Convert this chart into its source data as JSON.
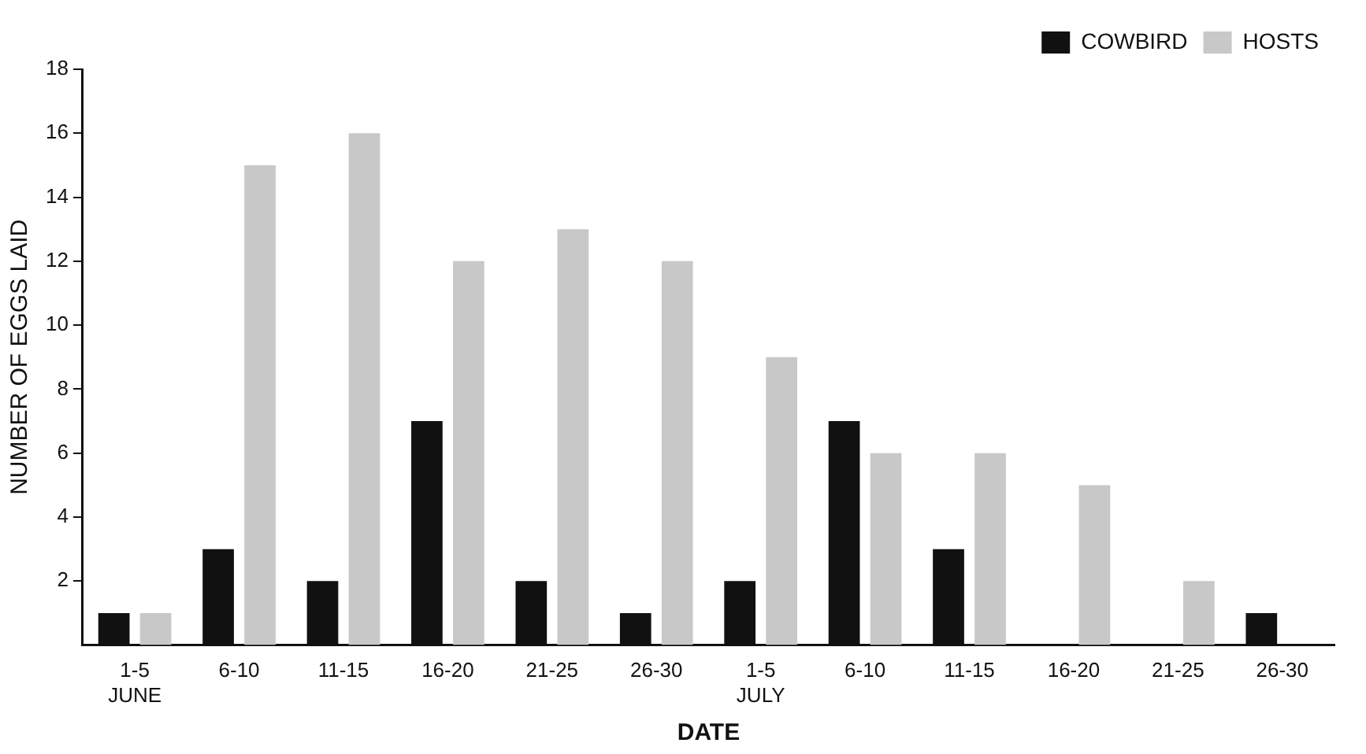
{
  "chart_data": {
    "type": "bar",
    "xlabel": "DATE",
    "ylabel": "NUMBER OF EGGS LAID",
    "categories": [
      "1-5\nJUNE",
      "6-10",
      "11-15",
      "16-20",
      "21-25",
      "26-30",
      "1-5\nJULY",
      "6-10",
      "11-15",
      "16-20",
      "21-25",
      "26-30"
    ],
    "series": [
      {
        "name": "COWBIRD",
        "color": "#111111",
        "values": [
          1,
          3,
          2,
          7,
          2,
          1,
          2,
          7,
          3,
          null,
          null,
          1
        ]
      },
      {
        "name": "HOSTS",
        "color": "#c8c8c8",
        "values": [
          1,
          15,
          16,
          12,
          13,
          12,
          9,
          6,
          6,
          5,
          2,
          null
        ]
      }
    ],
    "ylim": [
      0,
      18
    ],
    "yticks": [
      2,
      4,
      6,
      8,
      10,
      12,
      14,
      16,
      18
    ],
    "grid": false,
    "legend": "top right"
  }
}
